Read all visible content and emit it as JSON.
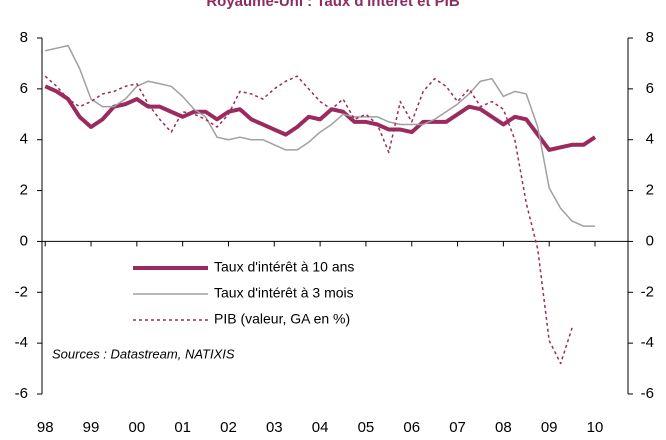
{
  "chart_data": {
    "type": "line",
    "title": "Royaume-Uni : Taux d'intérêt et PIB",
    "annotation": "Sources : Datastream, NATIXIS",
    "x": [
      1998,
      1998.25,
      1998.5,
      1998.75,
      1999,
      1999.25,
      1999.5,
      1999.75,
      2000,
      2000.25,
      2000.5,
      2000.75,
      2001,
      2001.25,
      2001.5,
      2001.75,
      2002,
      2002.25,
      2002.5,
      2002.75,
      2003,
      2003.25,
      2003.5,
      2003.75,
      2004,
      2004.25,
      2004.5,
      2004.75,
      2005,
      2005.25,
      2005.5,
      2005.75,
      2006,
      2006.25,
      2006.5,
      2006.75,
      2007,
      2007.25,
      2007.5,
      2007.75,
      2008,
      2008.25,
      2008.5,
      2008.75,
      2009,
      2009.25,
      2009.5,
      2009.75,
      2010
    ],
    "series": [
      {
        "name": "Taux d'intérêt à 10 ans",
        "color": "#9b2a5e",
        "width": 4,
        "dash": "none",
        "values": [
          6.1,
          5.9,
          5.6,
          4.9,
          4.5,
          4.8,
          5.3,
          5.4,
          5.6,
          5.3,
          5.3,
          5.1,
          4.9,
          5.1,
          5.1,
          4.8,
          5.1,
          5.2,
          4.8,
          4.6,
          4.4,
          4.2,
          4.5,
          4.9,
          4.8,
          5.2,
          5.1,
          4.7,
          4.7,
          4.6,
          4.4,
          4.4,
          4.3,
          4.7,
          4.7,
          4.7,
          5.0,
          5.3,
          5.2,
          4.9,
          4.6,
          4.9,
          4.8,
          4.2,
          3.6,
          3.7,
          3.8,
          3.8,
          4.1
        ]
      },
      {
        "name": "Taux d'intérêt à 3 mois",
        "color": "#a0a0a0",
        "width": 1.5,
        "dash": "none",
        "values": [
          7.5,
          7.6,
          7.7,
          6.8,
          5.6,
          5.3,
          5.3,
          5.6,
          6.1,
          6.3,
          6.2,
          6.1,
          5.7,
          5.2,
          4.9,
          4.1,
          4.0,
          4.1,
          4.0,
          4.0,
          3.8,
          3.6,
          3.6,
          3.9,
          4.3,
          4.6,
          5.0,
          4.9,
          4.9,
          4.9,
          4.7,
          4.6,
          4.6,
          4.6,
          4.8,
          5.1,
          5.4,
          5.8,
          6.3,
          6.4,
          5.7,
          5.9,
          5.8,
          4.5,
          2.1,
          1.3,
          0.8,
          0.6,
          0.6
        ]
      },
      {
        "name": "PIB (valeur, GA en %)",
        "color": "#9b2a5e",
        "width": 1.5,
        "dash": "3,3",
        "values": [
          6.5,
          6.1,
          5.6,
          5.3,
          5.5,
          5.8,
          5.9,
          6.1,
          6.2,
          5.4,
          4.8,
          4.3,
          5.1,
          5.0,
          4.8,
          4.5,
          5.0,
          5.9,
          5.8,
          5.6,
          6.0,
          6.3,
          6.5,
          6.0,
          5.5,
          5.2,
          5.6,
          4.8,
          5.0,
          4.6,
          3.5,
          5.5,
          4.7,
          5.9,
          6.4,
          6.1,
          5.5,
          6.0,
          5.3,
          5.5,
          5.2,
          4.0,
          1.5,
          -0.3,
          -3.9,
          -4.8,
          -3.4,
          null,
          null
        ]
      }
    ],
    "xlim": [
      1997.93,
      2010.72
    ],
    "xticks": [
      {
        "value": 1998,
        "label": "98"
      },
      {
        "value": 1999,
        "label": "99"
      },
      {
        "value": 2000,
        "label": "00"
      },
      {
        "value": 2001,
        "label": "01"
      },
      {
        "value": 2002,
        "label": "02"
      },
      {
        "value": 2003,
        "label": "03"
      },
      {
        "value": 2004,
        "label": "04"
      },
      {
        "value": 2005,
        "label": "05"
      },
      {
        "value": 2006,
        "label": "06"
      },
      {
        "value": 2007,
        "label": "07"
      },
      {
        "value": 2008,
        "label": "08"
      },
      {
        "value": 2009,
        "label": "09"
      },
      {
        "value": 2010,
        "label": "10"
      }
    ],
    "ylim": [
      -6,
      8
    ],
    "yticks": [
      -6,
      -4,
      -2,
      0,
      2,
      4,
      6,
      8
    ],
    "y2lim": [
      -6,
      8
    ],
    "y2ticks": [
      -6,
      -4,
      -2,
      0,
      2,
      4,
      6,
      8
    ]
  }
}
